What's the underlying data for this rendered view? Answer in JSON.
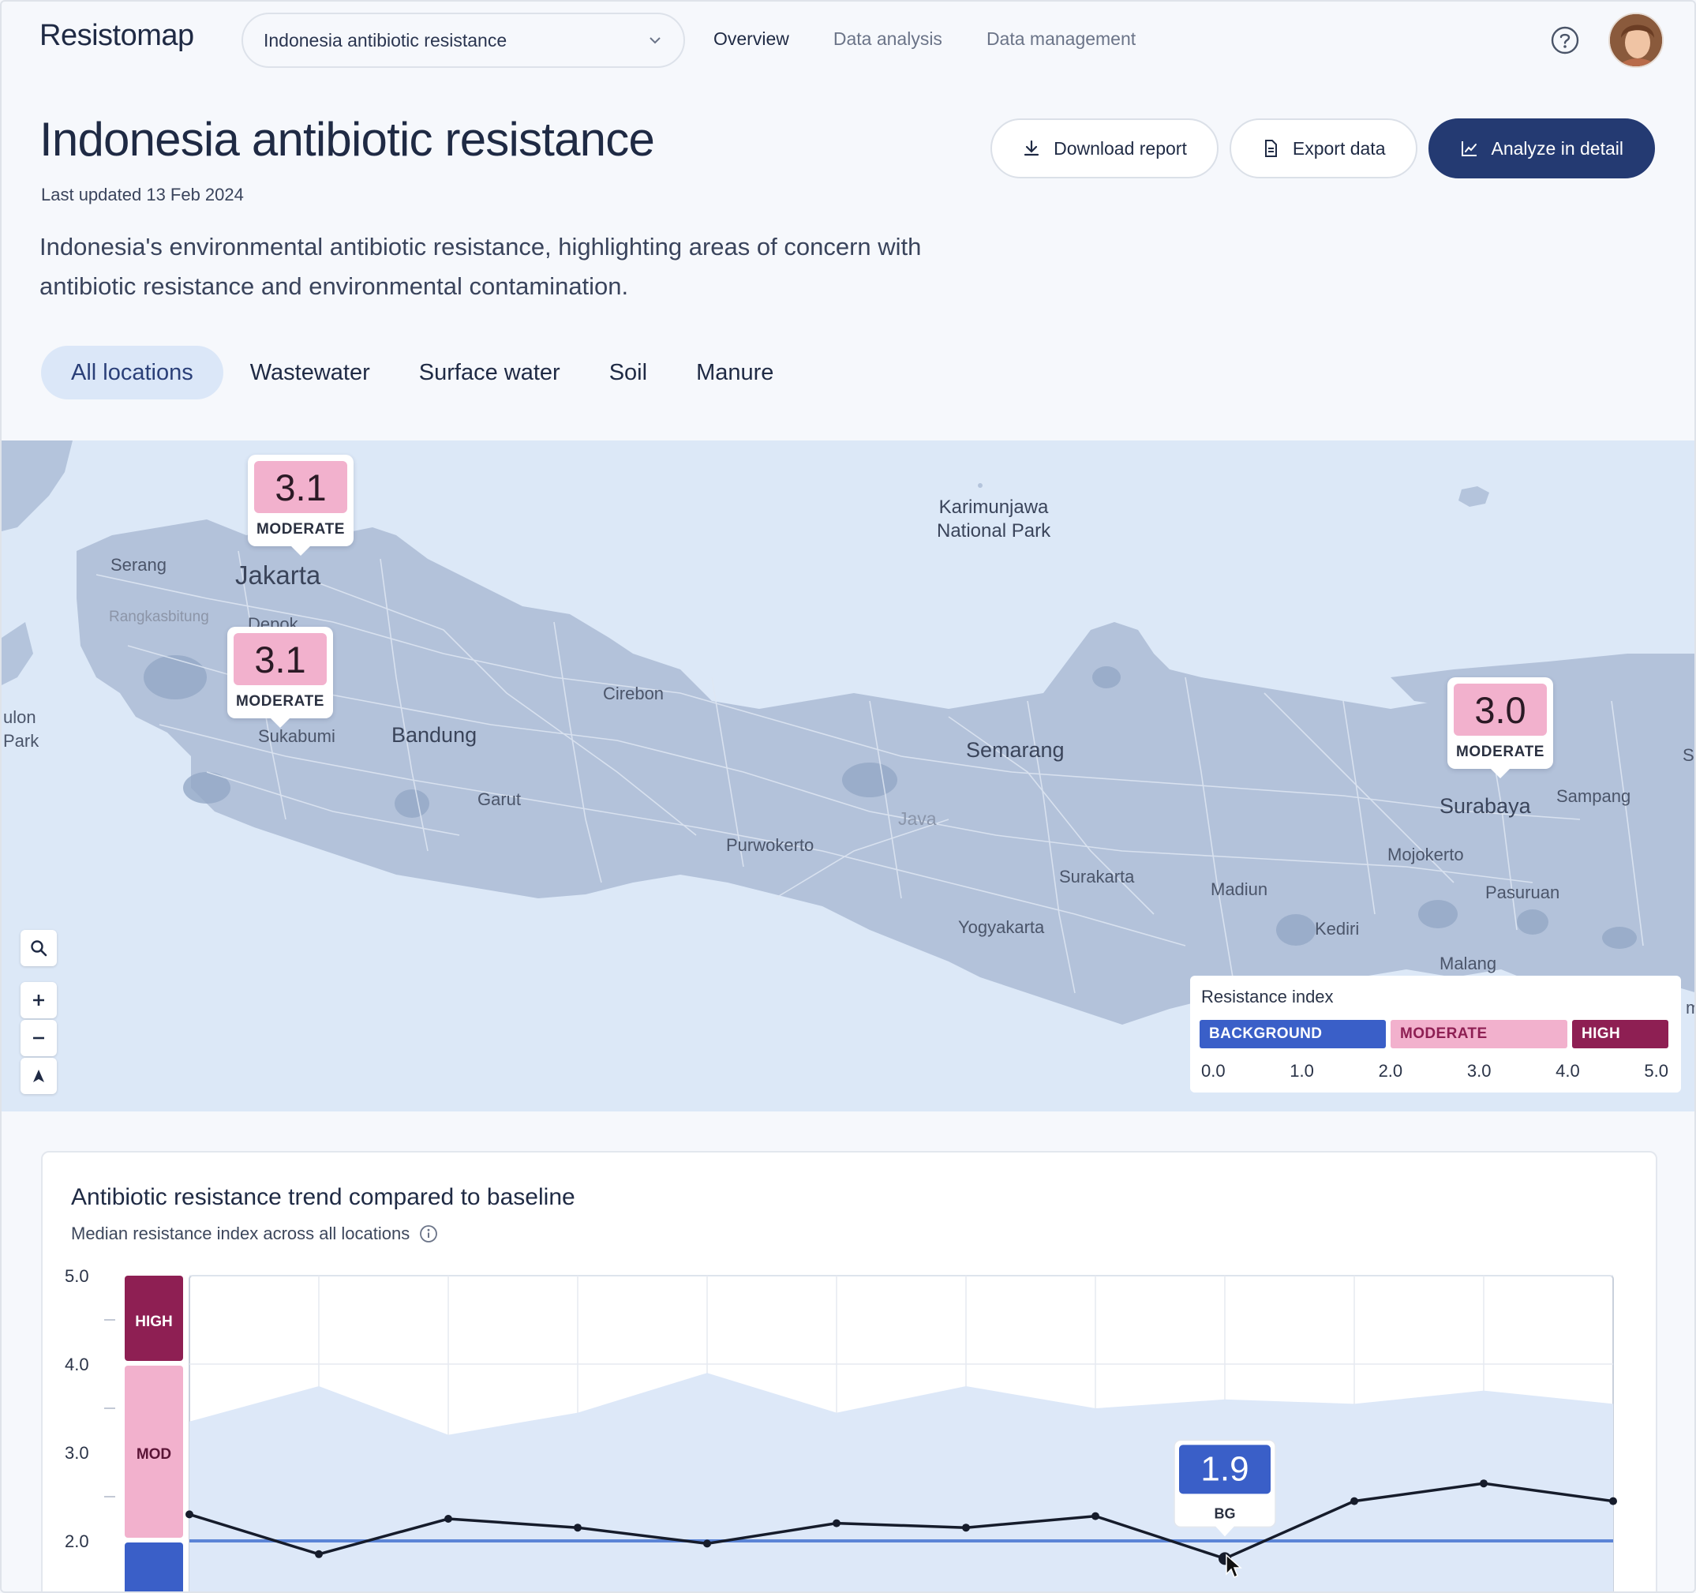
{
  "app": {
    "logo_text": "Resistomap",
    "dataset_select": "Indonesia antibiotic resistance",
    "nav": [
      "Overview",
      "Data analysis",
      "Data management"
    ],
    "active_nav": "Overview"
  },
  "header": {
    "title": "Indonesia antibiotic resistance",
    "updated": "Last updated 13 Feb 2024",
    "description": "Indonesia's environmental antibiotic resistance, highlighting areas of concern with antibiotic resistance and environmental contamination.",
    "actions": {
      "download": "Download report",
      "export": "Export data",
      "analyze": "Analyze in detail"
    }
  },
  "tabs": [
    "All locations",
    "Wastewater",
    "Surface water",
    "Soil",
    "Manure"
  ],
  "map": {
    "places": {
      "karimunjawa": "Karimunjawa\nNational Park",
      "serang": "Serang",
      "jakarta": "Jakarta",
      "rangkasbitung": "Rangkasbitung",
      "depok": "Depok",
      "ulon_park": "ulon\nPark",
      "cirebon": "Cirebon",
      "sukabumi": "Sukabumi",
      "bandung": "Bandung",
      "garut": "Garut",
      "semarang": "Semarang",
      "java": "Java",
      "purwokerto": "Purwokerto",
      "surakarta": "Surakarta",
      "yogyakarta": "Yogyakarta",
      "madiun": "Madiun",
      "kediri": "Kediri",
      "mojokerto": "Mojokerto",
      "surabaya": "Surabaya",
      "sampang": "Sampang",
      "pasuruan": "Pasuruan",
      "malang": "Malang",
      "su_edge": "Su",
      "mb_edge": "mb"
    },
    "markers": [
      {
        "value": "3.1",
        "level": "MODERATE"
      },
      {
        "value": "3.1",
        "level": "MODERATE"
      },
      {
        "value": "3.0",
        "level": "MODERATE"
      }
    ],
    "legend": {
      "title": "Resistance index",
      "bands": [
        "BACKGROUND",
        "MODERATE",
        "HIGH"
      ],
      "ticks": [
        "0.0",
        "1.0",
        "2.0",
        "3.0",
        "4.0",
        "5.0"
      ]
    }
  },
  "trend_card": {
    "title": "Antibiotic resistance trend compared to baseline",
    "subtitle": "Median resistance index across all locations"
  },
  "chart_data": {
    "type": "line",
    "y_ticks": [
      "5.0",
      "4.0",
      "3.0",
      "2.0"
    ],
    "ylim": [
      1.4,
      5.0
    ],
    "baseline": 2.0,
    "band_labels": [
      "HIGH",
      "MOD"
    ],
    "band_colors": {
      "high": "#8e1f53",
      "moderate": "#f2b1cd",
      "background": "#3a5fc8"
    },
    "upper_range": [
      3.35,
      3.75,
      3.2,
      3.45,
      3.9,
      3.45,
      3.75,
      3.5,
      3.6,
      3.55,
      3.7,
      3.55
    ],
    "median": [
      2.3,
      1.85,
      2.25,
      2.15,
      1.97,
      2.2,
      2.15,
      2.28,
      1.8,
      2.45,
      2.65,
      2.45
    ],
    "tooltip": {
      "value": "1.9",
      "label": "BG"
    }
  }
}
